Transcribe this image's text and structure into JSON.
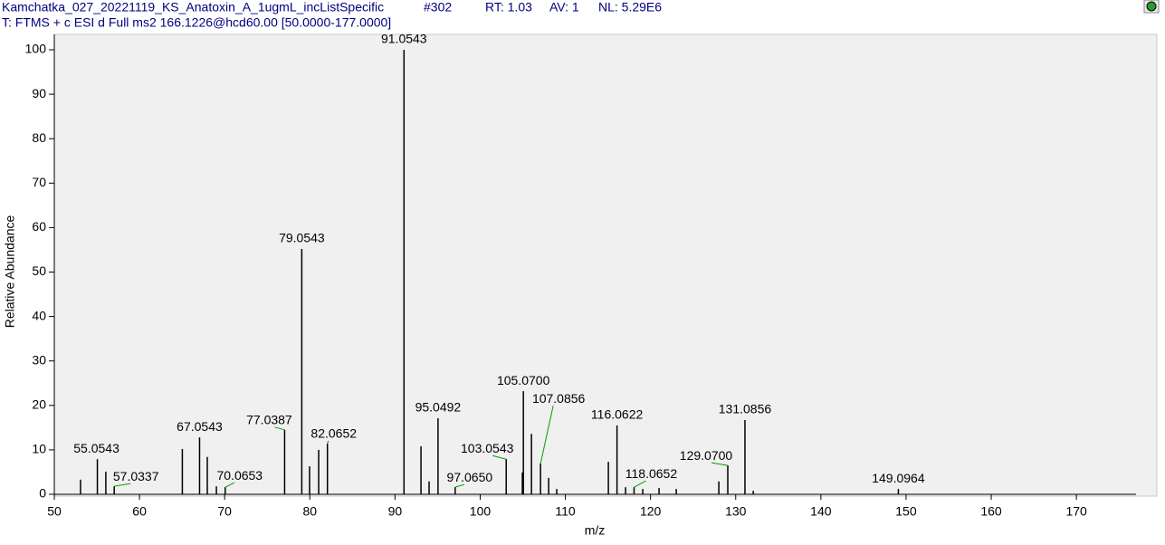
{
  "header": {
    "file": "Kamchatka_027_20221119_KS_Anatoxin_A_1ugmL_incListSpecific",
    "scan": "#302",
    "rt": "RT:  1.03",
    "av": "AV:  1",
    "nl": "NL:  5.29E6",
    "filter": "T:  FTMS + c ESI d Full ms2 166.1226@hcd60.00 [50.0000-177.0000]"
  },
  "chart_data": {
    "type": "bar",
    "x_label": "m/z",
    "y_label": "Relative Abundance",
    "color": "#000000",
    "label_color": "#000000",
    "leader_color": "#00a000",
    "x": [
      53.08,
      55.0543,
      56.05,
      57.0337,
      65.03,
      67.0543,
      67.96,
      69.03,
      70.0653,
      77.0387,
      79.0543,
      79.97,
      81.04,
      82.0652,
      91.0543,
      93.05,
      94.0,
      95.0492,
      97.065,
      103.0543,
      104.95,
      105.07,
      106.02,
      107.0856,
      108.04,
      108.99,
      115.05,
      116.0622,
      117.07,
      118.0652,
      119.09,
      121.0,
      123.02,
      128.02,
      129.07,
      131.0856,
      132.06,
      149.0964
    ],
    "x_labels": [
      null,
      "55.0543",
      null,
      "57.0337",
      null,
      "67.0543",
      null,
      null,
      "70.0653",
      "77.0387",
      "79.0543",
      null,
      null,
      "82.0652",
      "91.0543",
      null,
      null,
      "95.0492",
      "97.0650",
      "103.0543",
      null,
      "105.0700",
      null,
      "107.0856",
      null,
      null,
      null,
      "116.0622",
      null,
      "118.0652",
      null,
      null,
      null,
      null,
      "129.0700",
      "131.0856",
      null,
      "149.0964"
    ],
    "values": [
      3.3,
      7.9,
      5.1,
      1.8,
      10.2,
      12.8,
      8.4,
      1.8,
      1.6,
      14.5,
      55.2,
      6.3,
      10,
      11.4,
      100,
      10.8,
      2.9,
      17.1,
      1.6,
      7.9,
      4.9,
      23.2,
      13.6,
      6.9,
      3.7,
      1.2,
      7.3,
      15.5,
      1.6,
      1.6,
      1.2,
      1.4,
      1.2,
      2.9,
      6.5,
      16.7,
      0.8,
      1.2
    ],
    "xlim": [
      50,
      177
    ],
    "ylim": [
      0,
      100
    ],
    "xticks": [
      50,
      60,
      70,
      80,
      90,
      100,
      110,
      120,
      130,
      140,
      150,
      160,
      170
    ],
    "yticks": [
      0,
      10,
      20,
      30,
      40,
      50,
      60,
      70,
      80,
      90,
      100
    ]
  }
}
